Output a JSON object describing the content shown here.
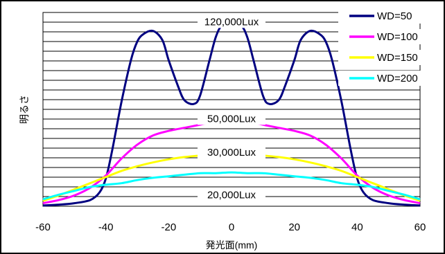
{
  "chart_data": {
    "type": "line",
    "xlabel": "発光面(mm)",
    "ylabel": "明るさ",
    "xlim": [
      -60,
      60
    ],
    "xticks": [
      "-60",
      "-40",
      "-20",
      "0",
      "20",
      "40",
      "60"
    ],
    "ylim": [
      0,
      126000
    ],
    "y_gridlines": 20,
    "grid": true,
    "legend_position": "top-right",
    "annotations": [
      {
        "text": "120,000Lux",
        "x": 0,
        "y": 120000
      },
      {
        "text": "50,000Lux",
        "x": 0,
        "y": 57000
      },
      {
        "text": "30,000Lux",
        "x": 0,
        "y": 35000
      },
      {
        "text": "20,000Lux",
        "x": 0,
        "y": 7500
      }
    ],
    "series": [
      {
        "name": "WD=50",
        "color": "#000080",
        "x": [
          -60,
          -55,
          -50,
          -45,
          -42,
          -40,
          -38,
          -35,
          -32,
          -30,
          -28,
          -25,
          -22,
          -20,
          -17,
          -15,
          -12,
          -10,
          -7,
          -5,
          -3,
          0,
          3,
          5,
          7,
          10,
          12,
          15,
          17,
          20,
          22,
          25,
          28,
          30,
          32,
          35,
          38,
          40,
          42,
          45,
          50,
          55,
          60
        ],
        "y": [
          500,
          1000,
          2000,
          4000,
          9000,
          18000,
          36000,
          68000,
          95000,
          107000,
          112000,
          114000,
          108000,
          95000,
          78000,
          69000,
          66500,
          72000,
          95000,
          110000,
          118000,
          121000,
          118000,
          110000,
          95000,
          72000,
          66500,
          69000,
          78000,
          95000,
          108000,
          114000,
          112000,
          107000,
          95000,
          68000,
          36000,
          18000,
          9000,
          4000,
          2000,
          1000,
          500
        ]
      },
      {
        "name": "WD=100",
        "color": "#ff00ff",
        "x": [
          -60,
          -55,
          -50,
          -45,
          -40,
          -35,
          -30,
          -25,
          -20,
          -15,
          -10,
          -5,
          0,
          5,
          10,
          15,
          20,
          25,
          30,
          35,
          40,
          45,
          50,
          55,
          60
        ],
        "y": [
          2000,
          4000,
          7000,
          12000,
          20000,
          31000,
          40000,
          46000,
          49000,
          51000,
          53000,
          55000,
          56000,
          55000,
          53000,
          51000,
          49000,
          46000,
          40000,
          31000,
          20000,
          12000,
          7000,
          4000,
          2000
        ]
      },
      {
        "name": "WD=150",
        "color": "#ffff00",
        "x": [
          -60,
          -55,
          -50,
          -45,
          -40,
          -35,
          -30,
          -25,
          -20,
          -15,
          -10,
          -5,
          0,
          5,
          10,
          15,
          20,
          25,
          30,
          35,
          40,
          45,
          50,
          55,
          60
        ],
        "y": [
          3500,
          7000,
          11000,
          15000,
          19000,
          23000,
          26000,
          28500,
          30500,
          32000,
          33000,
          34000,
          34000,
          34000,
          33000,
          32000,
          30500,
          28500,
          26000,
          23000,
          19000,
          15000,
          11000,
          7000,
          3500
        ]
      },
      {
        "name": "WD=200",
        "color": "#00ffff",
        "x": [
          -60,
          -55,
          -50,
          -45,
          -40,
          -35,
          -30,
          -25,
          -20,
          -15,
          -10,
          -5,
          0,
          5,
          10,
          15,
          20,
          25,
          30,
          35,
          40,
          45,
          50,
          55,
          60
        ],
        "y": [
          4500,
          7500,
          10000,
          12500,
          14000,
          15000,
          17000,
          18500,
          19500,
          20500,
          21500,
          21500,
          22000,
          21500,
          21500,
          20500,
          19500,
          18500,
          17000,
          15000,
          14000,
          12500,
          10000,
          7500,
          4500
        ]
      }
    ]
  }
}
